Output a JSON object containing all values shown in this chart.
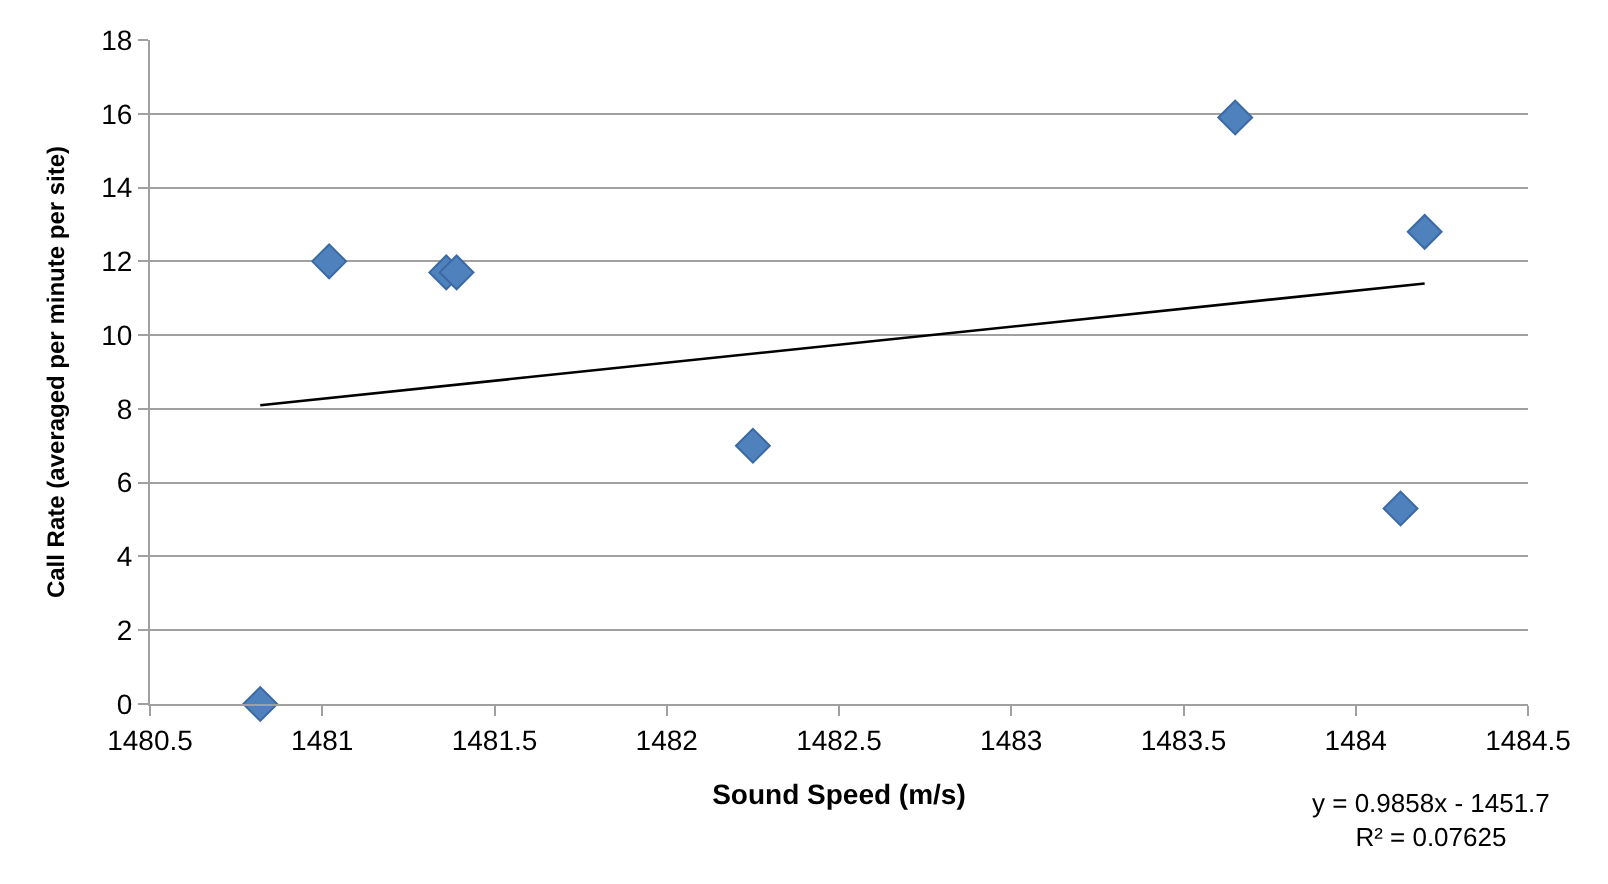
{
  "chart_data": {
    "type": "scatter",
    "xlabel": "Sound Speed (m/s)",
    "ylabel": "Call Rate (averaged per minute per site)",
    "annotations": [
      "y = 0.9858x - 1451.7",
      "R² = 0.07625"
    ],
    "series": [
      {
        "color": "#4f81bd",
        "marker": "diamond",
        "x": [
          1480.82,
          1481.02,
          1481.36,
          1481.39,
          1482.25,
          1483.65,
          1484.2,
          1484.13
        ],
        "values": [
          0,
          12,
          11.7,
          11.7,
          7,
          15.9,
          12.8,
          5.3
        ]
      },
      {
        "type": "line",
        "color": "#000000",
        "marker": "none",
        "x": [
          1480.82,
          1484.2
        ],
        "values": [
          8.1,
          11.4
        ]
      }
    ],
    "xlim": [
      1480.5,
      1484.5
    ],
    "xticks": [
      1480.5,
      1481,
      1481.5,
      1482,
      1482.5,
      1483,
      1483.5,
      1484,
      1484.5
    ],
    "ylim": [
      0,
      18
    ],
    "yticks": [
      0,
      2,
      4,
      6,
      8,
      10,
      12,
      14,
      16,
      18
    ],
    "grid": "y"
  }
}
